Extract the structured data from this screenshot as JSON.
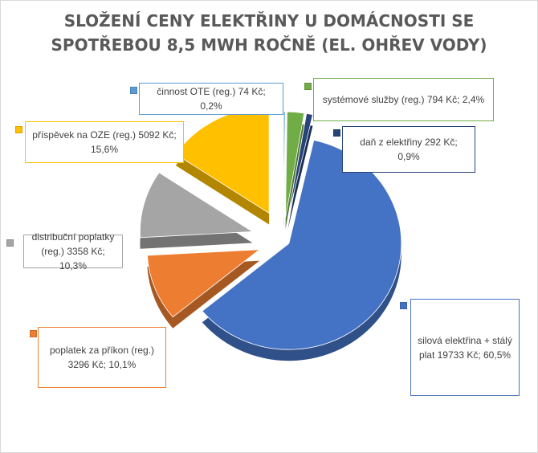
{
  "chart_data": {
    "type": "pie",
    "title_lines": [
      "SLOŽENÍ CENY ELEKTŘINY U DOMÁCNOSTI SE",
      "SPOTŘEBOU 8,5 MWH ROČNĚ (EL. OHŘEV VODY)"
    ],
    "slices": [
      {
        "label": "silová elektřina + stálý plat 19733 Kč; 60,5%",
        "value": 19733,
        "percent": 60.5,
        "color": "#4472c4"
      },
      {
        "label": "poplatek za příkon (reg.) 3296 Kč; 10,1%",
        "value": 3296,
        "percent": 10.1,
        "color": "#ed7d31"
      },
      {
        "label": "distribuční poplatky (reg.) 3358 Kč; 10,3%",
        "value": 3358,
        "percent": 10.3,
        "color": "#a5a5a5"
      },
      {
        "label": "příspěvek na OZE (reg.) 5092 Kč; 15,6%",
        "value": 5092,
        "percent": 15.6,
        "color": "#ffc000"
      },
      {
        "label": "činnost OTE (reg.) 74 Kč; 0,2%",
        "value": 74,
        "percent": 0.2,
        "color": "#5b9bd5"
      },
      {
        "label": "systémové služby (reg.) 794 Kč; 2,4%",
        "value": 794,
        "percent": 2.4,
        "color": "#70ad47"
      },
      {
        "label": "daň z elektřiny 292 Kč; 0,9%",
        "value": 292,
        "percent": 0.9,
        "color": "#264478"
      }
    ]
  }
}
